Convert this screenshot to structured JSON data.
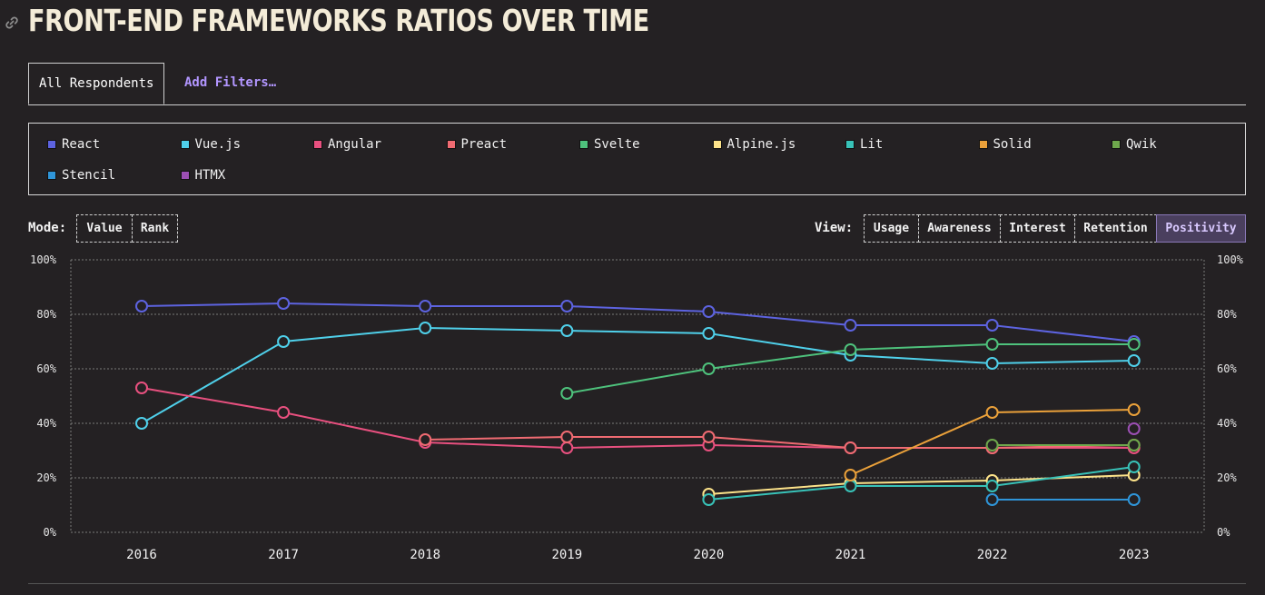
{
  "page": {
    "title": "FRONT-END FRAMEWORKS RATIOS OVER TIME"
  },
  "tabs": {
    "active_label": "All Respondents",
    "filters_label": "Add Filters…"
  },
  "legend": [
    {
      "name": "React",
      "color": "#5d63e0"
    },
    {
      "name": "Vue.js",
      "color": "#4fd0ea"
    },
    {
      "name": "Angular",
      "color": "#e8507f"
    },
    {
      "name": "Preact",
      "color": "#f06b72"
    },
    {
      "name": "Svelte",
      "color": "#4ec27c"
    },
    {
      "name": "Alpine.js",
      "color": "#fde38a"
    },
    {
      "name": "Lit",
      "color": "#38c2b8"
    },
    {
      "name": "Solid",
      "color": "#eba13a"
    },
    {
      "name": "Qwik",
      "color": "#6ea84c"
    },
    {
      "name": "Stencil",
      "color": "#2f95d8"
    },
    {
      "name": "HTMX",
      "color": "#9b4fb3"
    }
  ],
  "controls": {
    "mode_label": "Mode:",
    "mode_options": [
      "Value",
      "Rank"
    ],
    "view_label": "View:",
    "view_options": [
      "Usage",
      "Awareness",
      "Interest",
      "Retention",
      "Positivity"
    ],
    "view_selected": "Positivity"
  },
  "chart_data": {
    "type": "line",
    "x": [
      "2016",
      "2017",
      "2018",
      "2019",
      "2020",
      "2021",
      "2022",
      "2023"
    ],
    "ylim": [
      0,
      100
    ],
    "yticks": [
      "0%",
      "20%",
      "40%",
      "60%",
      "80%",
      "100%"
    ],
    "grid": true,
    "series": [
      {
        "name": "React",
        "color": "#5d63e0",
        "values": [
          83,
          84,
          83,
          83,
          81,
          76,
          76,
          70
        ]
      },
      {
        "name": "Vue.js",
        "color": "#4fd0ea",
        "values": [
          40,
          70,
          75,
          74,
          73,
          65,
          62,
          63
        ]
      },
      {
        "name": "Angular",
        "color": "#e8507f",
        "values": [
          53,
          44,
          33,
          31,
          32,
          31,
          31,
          31
        ]
      },
      {
        "name": "Preact",
        "color": "#f06b72",
        "values": [
          null,
          null,
          34,
          35,
          35,
          31,
          31,
          32
        ]
      },
      {
        "name": "Svelte",
        "color": "#4ec27c",
        "values": [
          null,
          null,
          null,
          51,
          60,
          67,
          69,
          69
        ]
      },
      {
        "name": "Alpine.js",
        "color": "#fde38a",
        "values": [
          null,
          null,
          null,
          null,
          14,
          18,
          19,
          21
        ]
      },
      {
        "name": "Lit",
        "color": "#38c2b8",
        "values": [
          null,
          null,
          null,
          null,
          12,
          17,
          17,
          24
        ]
      },
      {
        "name": "Solid",
        "color": "#eba13a",
        "values": [
          null,
          null,
          null,
          null,
          null,
          21,
          44,
          45
        ]
      },
      {
        "name": "Qwik",
        "color": "#6ea84c",
        "values": [
          null,
          null,
          null,
          null,
          null,
          null,
          32,
          32
        ]
      },
      {
        "name": "Stencil",
        "color": "#2f95d8",
        "values": [
          null,
          null,
          null,
          null,
          null,
          null,
          12,
          12
        ]
      },
      {
        "name": "HTMX",
        "color": "#9b4fb3",
        "values": [
          null,
          null,
          null,
          null,
          null,
          null,
          null,
          38
        ]
      }
    ]
  }
}
